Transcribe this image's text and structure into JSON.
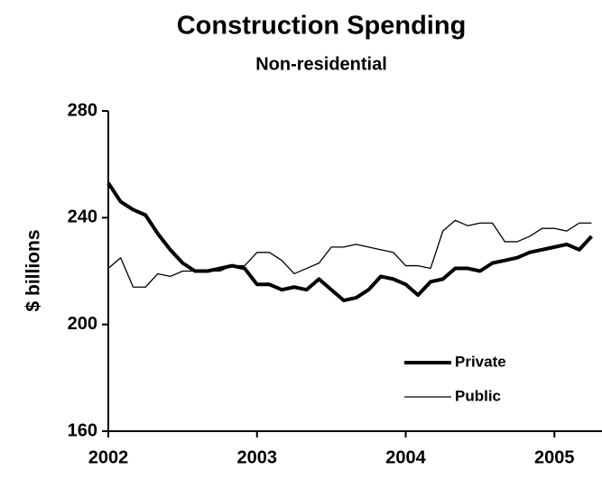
{
  "chart_data": {
    "type": "line",
    "title": "Construction Spending",
    "subtitle": "Non-residential",
    "y_label": "$ billions",
    "x": [
      2002,
      2002.083,
      2002.167,
      2002.25,
      2002.333,
      2002.417,
      2002.5,
      2002.583,
      2002.667,
      2002.75,
      2002.833,
      2002.917,
      2003,
      2003.083,
      2003.167,
      2003.25,
      2003.333,
      2003.417,
      2003.5,
      2003.583,
      2003.667,
      2003.75,
      2003.833,
      2003.917,
      2004,
      2004.083,
      2004.167,
      2004.25,
      2004.333,
      2004.417,
      2004.5,
      2004.583,
      2004.667,
      2004.75,
      2004.833,
      2004.917,
      2005,
      2005.083,
      2005.167,
      2005.25
    ],
    "series": [
      {
        "name": "Private",
        "color": "#000000",
        "width": 4,
        "values": [
          253,
          246,
          243,
          241,
          234,
          228,
          223,
          220,
          220,
          221,
          222,
          221,
          215,
          215,
          213,
          214,
          213,
          217,
          213,
          209,
          210,
          213,
          218,
          217,
          215,
          211,
          216,
          217,
          221,
          221,
          220,
          223,
          224,
          225,
          227,
          228,
          229,
          230,
          228,
          233
        ]
      },
      {
        "name": "Public",
        "color": "#000000",
        "width": 1.3,
        "values": [
          221,
          225,
          214,
          214,
          219,
          218,
          220,
          220,
          220,
          220,
          222,
          222,
          227,
          227,
          224,
          219,
          221,
          223,
          229,
          229,
          230,
          229,
          228,
          227,
          222,
          222,
          221,
          235,
          239,
          237,
          238,
          238,
          231,
          231,
          233,
          236,
          236,
          235,
          238,
          238
        ]
      }
    ],
    "xlim": [
      2002,
      2005.32
    ],
    "xticks": [
      2002,
      2003,
      2004,
      2005
    ],
    "ylim": [
      160,
      280
    ],
    "yticks": [
      160,
      200,
      240,
      280
    ],
    "legend": "lower right"
  }
}
